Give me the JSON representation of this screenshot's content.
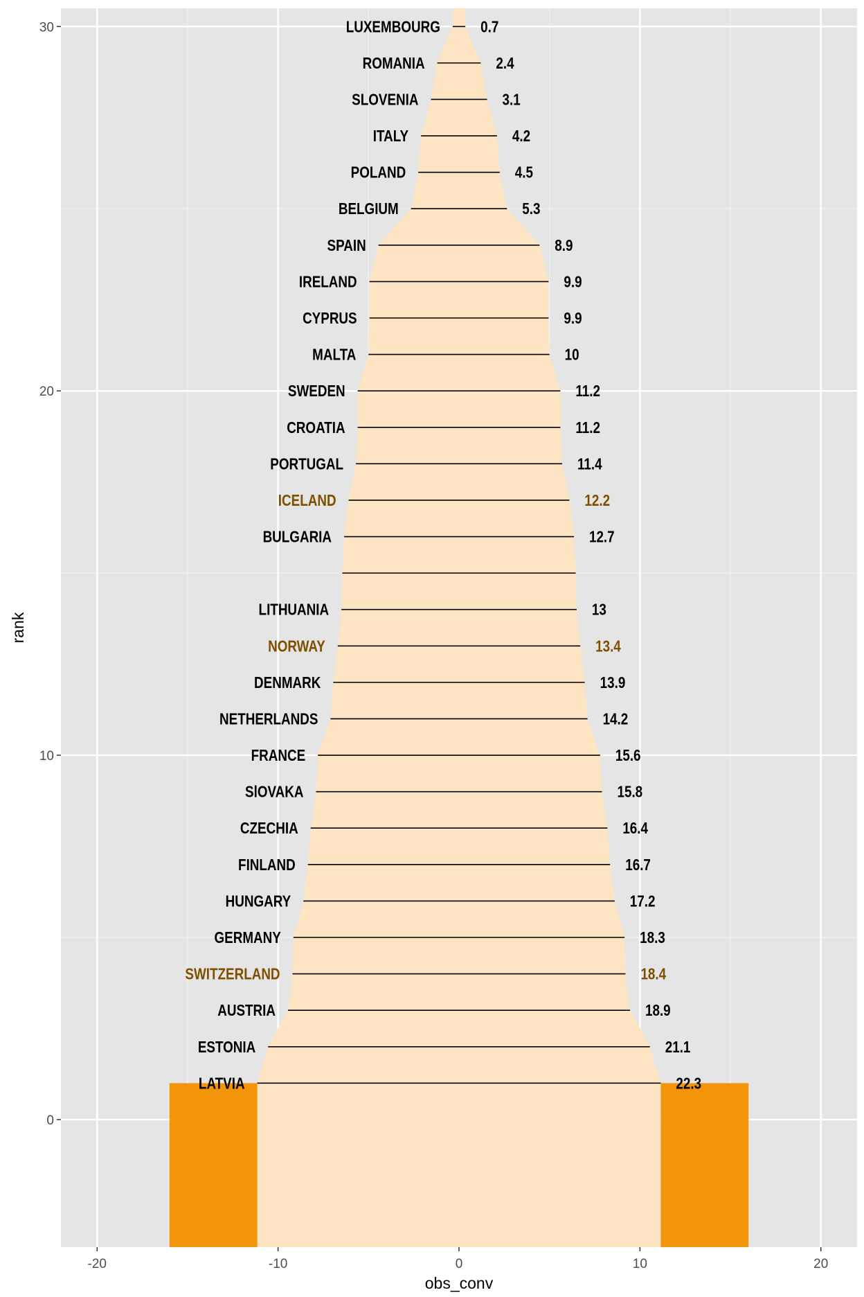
{
  "chart_data": {
    "type": "bar",
    "xlabel": "obs_conv",
    "ylabel": "rank",
    "xlim": [
      -22,
      22
    ],
    "ylim": [
      -3.5,
      30.5
    ],
    "x_ticks": [
      "-20",
      "-10",
      "0",
      "10",
      "20"
    ],
    "y_ticks": [
      "0",
      "10",
      "20",
      "30"
    ],
    "grid": true,
    "colors": {
      "panel": "#e5e5e5",
      "ribbon": "#fde4c2",
      "side_bars": "#f39508",
      "highlight": "#7f4f00",
      "default_label": "#000000"
    },
    "side_bars": {
      "x_inner": 11.15,
      "x_outer": 16,
      "y_top": 1
    },
    "rows": [
      {
        "rank": 30,
        "name": "LUXEMBOURG",
        "value": 0.7,
        "label": "0.7",
        "highlight": false
      },
      {
        "rank": 29,
        "name": "ROMANIA",
        "value": 2.4,
        "label": "2.4",
        "highlight": false
      },
      {
        "rank": 28,
        "name": "SLOVENIA",
        "value": 3.1,
        "label": "3.1",
        "highlight": false
      },
      {
        "rank": 27,
        "name": "ITALY",
        "value": 4.2,
        "label": "4.2",
        "highlight": false
      },
      {
        "rank": 26,
        "name": "POLAND",
        "value": 4.5,
        "label": "4.5",
        "highlight": false
      },
      {
        "rank": 25,
        "name": "BELGIUM",
        "value": 5.3,
        "label": "5.3",
        "highlight": false
      },
      {
        "rank": 24,
        "name": "SPAIN",
        "value": 8.9,
        "label": "8.9",
        "highlight": false
      },
      {
        "rank": 23,
        "name": "IRELAND",
        "value": 9.9,
        "label": "9.9",
        "highlight": false
      },
      {
        "rank": 22,
        "name": "CYPRUS",
        "value": 9.9,
        "label": "9.9",
        "highlight": false
      },
      {
        "rank": 21,
        "name": "MALTA",
        "value": 10,
        "label": "10",
        "highlight": false
      },
      {
        "rank": 20,
        "name": "SWEDEN",
        "value": 11.2,
        "label": "11.2",
        "highlight": false
      },
      {
        "rank": 19,
        "name": "CROATIA",
        "value": 11.2,
        "label": "11.2",
        "highlight": false
      },
      {
        "rank": 18,
        "name": "PORTUGAL",
        "value": 11.4,
        "label": "11.4",
        "highlight": false
      },
      {
        "rank": 17,
        "name": "ICELAND",
        "value": 12.2,
        "label": "12.2",
        "highlight": true
      },
      {
        "rank": 16,
        "name": "BULGARIA",
        "value": 12.7,
        "label": "12.7",
        "highlight": false
      },
      {
        "rank": 15,
        "name": "",
        "value": 12.9,
        "label": "",
        "highlight": false
      },
      {
        "rank": 14,
        "name": "LITHUANIA",
        "value": 13,
        "label": "13",
        "highlight": false
      },
      {
        "rank": 13,
        "name": "NORWAY",
        "value": 13.4,
        "label": "13.4",
        "highlight": true
      },
      {
        "rank": 12,
        "name": "DENMARK",
        "value": 13.9,
        "label": "13.9",
        "highlight": false
      },
      {
        "rank": 11,
        "name": "NETHERLANDS",
        "value": 14.2,
        "label": "14.2",
        "highlight": false
      },
      {
        "rank": 10,
        "name": "FRANCE",
        "value": 15.6,
        "label": "15.6",
        "highlight": false
      },
      {
        "rank": 9,
        "name": "SlOVAKA",
        "value": 15.8,
        "label": "15.8",
        "highlight": false
      },
      {
        "rank": 8,
        "name": "CZECHIA",
        "value": 16.4,
        "label": "16.4",
        "highlight": false
      },
      {
        "rank": 7,
        "name": "FINLAND",
        "value": 16.7,
        "label": "16.7",
        "highlight": false
      },
      {
        "rank": 6,
        "name": "HUNGARY",
        "value": 17.2,
        "label": "17.2",
        "highlight": false
      },
      {
        "rank": 5,
        "name": "GERMANY",
        "value": 18.3,
        "label": "18.3",
        "highlight": false
      },
      {
        "rank": 4,
        "name": "SWITZERLAND",
        "value": 18.4,
        "label": "18.4",
        "highlight": true
      },
      {
        "rank": 3,
        "name": "AUSTRIA",
        "value": 18.9,
        "label": "18.9",
        "highlight": false
      },
      {
        "rank": 2,
        "name": "ESTONIA",
        "value": 21.1,
        "label": "21.1",
        "highlight": false
      },
      {
        "rank": 1,
        "name": "LATVIA",
        "value": 22.3,
        "label": "22.3",
        "highlight": false
      }
    ]
  }
}
